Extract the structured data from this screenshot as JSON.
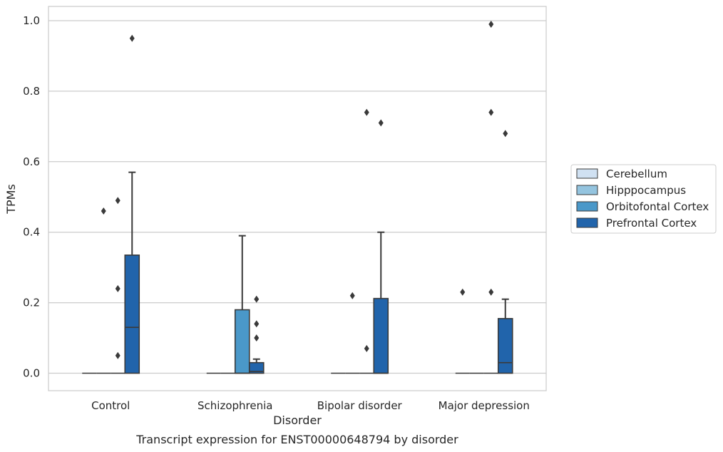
{
  "chart_data": {
    "type": "box",
    "caption": "Transcript expression for ENST00000648794 by disorder",
    "xlabel": "Disorder",
    "ylabel": "TPMs",
    "ylim": [
      -0.05,
      1.04
    ],
    "yticks": [
      0.0,
      0.2,
      0.4,
      0.6,
      0.8,
      1.0
    ],
    "ytick_labels": [
      "0.0",
      "0.2",
      "0.4",
      "0.6",
      "0.8",
      "1.0"
    ],
    "grid": true,
    "legend_position": "right",
    "categories": [
      "Control",
      "Schizophrenia",
      "Bipolar disorder",
      "Major depression"
    ],
    "series": [
      {
        "name": "Cerebellum",
        "color": "#d0e1f2",
        "boxes": [
          {
            "q1": 0,
            "median": 0,
            "q3": 0,
            "whisker_low": 0,
            "whisker_high": 0,
            "outliers": []
          },
          {
            "q1": 0,
            "median": 0,
            "q3": 0,
            "whisker_low": 0,
            "whisker_high": 0,
            "outliers": []
          },
          {
            "q1": 0,
            "median": 0,
            "q3": 0,
            "whisker_low": 0,
            "whisker_high": 0,
            "outliers": []
          },
          {
            "q1": 0,
            "median": 0,
            "q3": 0,
            "whisker_low": 0,
            "whisker_high": 0,
            "outliers": [
              0.23
            ]
          }
        ]
      },
      {
        "name": "Hipppocampus",
        "color": "#94c4df",
        "boxes": [
          {
            "q1": 0,
            "median": 0,
            "q3": 0,
            "whisker_low": 0,
            "whisker_high": 0,
            "outliers": [
              0.46
            ]
          },
          {
            "q1": 0,
            "median": 0,
            "q3": 0,
            "whisker_low": 0,
            "whisker_high": 0,
            "outliers": []
          },
          {
            "q1": 0,
            "median": 0,
            "q3": 0,
            "whisker_low": 0,
            "whisker_high": 0,
            "outliers": [
              0.22
            ]
          },
          {
            "q1": 0,
            "median": 0,
            "q3": 0,
            "whisker_low": 0,
            "whisker_high": 0,
            "outliers": []
          }
        ]
      },
      {
        "name": "Orbitofontal Cortex",
        "color": "#4a98c9",
        "boxes": [
          {
            "q1": 0,
            "median": 0,
            "q3": 0,
            "whisker_low": 0,
            "whisker_high": 0,
            "outliers": [
              0.05,
              0.24,
              0.49
            ]
          },
          {
            "q1": 0,
            "median": 0,
            "q3": 0.18,
            "whisker_low": 0,
            "whisker_high": 0.39,
            "outliers": []
          },
          {
            "q1": 0,
            "median": 0,
            "q3": 0,
            "whisker_low": 0,
            "whisker_high": 0,
            "outliers": [
              0.07,
              0.74
            ]
          },
          {
            "q1": 0,
            "median": 0,
            "q3": 0,
            "whisker_low": 0,
            "whisker_high": 0,
            "outliers": [
              0.23,
              0.74,
              0.99
            ]
          }
        ]
      },
      {
        "name": "Prefrontal Cortex",
        "color": "#2164ab",
        "boxes": [
          {
            "q1": 0,
            "median": 0.13,
            "q3": 0.335,
            "whisker_low": 0,
            "whisker_high": 0.57,
            "outliers": [
              0.95
            ]
          },
          {
            "q1": 0,
            "median": 0.005,
            "q3": 0.03,
            "whisker_low": 0,
            "whisker_high": 0.04,
            "outliers": [
              0.1,
              0.14,
              0.21
            ]
          },
          {
            "q1": 0,
            "median": 0,
            "q3": 0.212,
            "whisker_low": 0,
            "whisker_high": 0.4,
            "outliers": [
              0.71
            ]
          },
          {
            "q1": 0,
            "median": 0.03,
            "q3": 0.155,
            "whisker_low": 0,
            "whisker_high": 0.21,
            "outliers": [
              0.68
            ]
          }
        ]
      }
    ]
  }
}
